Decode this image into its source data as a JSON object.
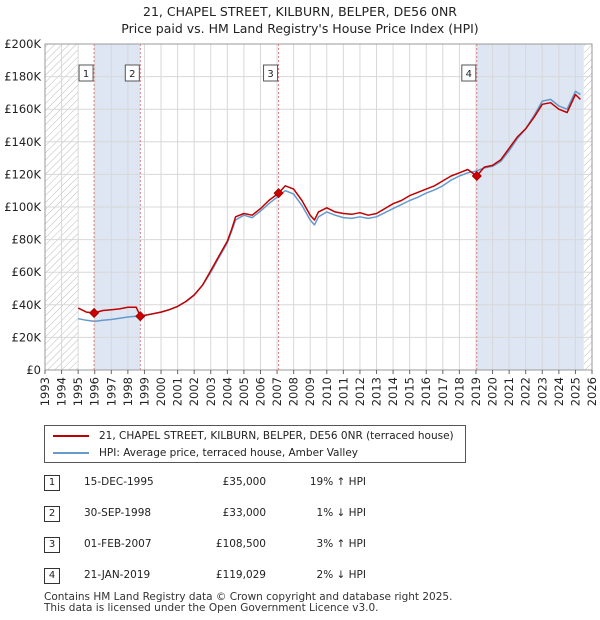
{
  "title_line1": "21, CHAPEL STREET, KILBURN, BELPER, DE56 0NR",
  "title_line2": "Price paid vs. HM Land Registry's House Price Index (HPI)",
  "colors": {
    "property_line": "#c00000",
    "hpi_line": "#6699cc",
    "shade": "#dde6f2",
    "hatch": "#bbbbbb",
    "marker_line": "#e08080"
  },
  "chart_data": {
    "type": "line",
    "title": "21, CHAPEL STREET, KILBURN, BELPER, DE56 0NR - Price paid vs. HM Land Registry's House Price Index (HPI)",
    "xlabel": "",
    "ylabel": "",
    "xlim": [
      1993,
      2026
    ],
    "ylim": [
      0,
      200000
    ],
    "y_ticks": [
      {
        "value": 0,
        "label": "£0"
      },
      {
        "value": 20000,
        "label": "£20K"
      },
      {
        "value": 40000,
        "label": "£40K"
      },
      {
        "value": 60000,
        "label": "£60K"
      },
      {
        "value": 80000,
        "label": "£80K"
      },
      {
        "value": 100000,
        "label": "£100K"
      },
      {
        "value": 120000,
        "label": "£120K"
      },
      {
        "value": 140000,
        "label": "£140K"
      },
      {
        "value": 160000,
        "label": "£160K"
      },
      {
        "value": 180000,
        "label": "£180K"
      },
      {
        "value": 200000,
        "label": "£200K"
      }
    ],
    "x_ticks": [
      "1993",
      "1994",
      "1995",
      "1996",
      "1997",
      "1998",
      "1999",
      "2000",
      "2001",
      "2002",
      "2003",
      "2004",
      "2005",
      "2006",
      "2007",
      "2008",
      "2009",
      "2010",
      "2011",
      "2012",
      "2013",
      "2014",
      "2015",
      "2016",
      "2017",
      "2018",
      "2019",
      "2020",
      "2021",
      "2022",
      "2023",
      "2024",
      "2025",
      "2026"
    ],
    "hatched_before": 1995.0,
    "hatched_after": 2025.5,
    "shaded_ranges": [
      [
        1995.96,
        1998.75
      ],
      [
        2019.05,
        2025.5
      ]
    ],
    "series": [
      {
        "name": "21, CHAPEL STREET, KILBURN, BELPER, DE56 0NR (terraced house)",
        "color": "#c00000",
        "x": [
          1995.0,
          1995.5,
          1995.96,
          1996.5,
          1997.0,
          1997.5,
          1998.0,
          1998.5,
          1998.75,
          1999.0,
          1999.5,
          2000.0,
          2000.5,
          2001.0,
          2001.5,
          2002.0,
          2002.5,
          2003.0,
          2003.5,
          2004.0,
          2004.25,
          2004.5,
          2005.0,
          2005.5,
          2006.0,
          2006.5,
          2007.09,
          2007.5,
          2008.0,
          2008.5,
          2009.0,
          2009.25,
          2009.5,
          2010.0,
          2010.5,
          2011.0,
          2011.5,
          2012.0,
          2012.5,
          2013.0,
          2013.5,
          2014.0,
          2014.5,
          2015.0,
          2015.5,
          2016.0,
          2016.5,
          2017.0,
          2017.5,
          2018.0,
          2018.5,
          2019.05,
          2019.5,
          2020.0,
          2020.5,
          2021.0,
          2021.5,
          2022.0,
          2022.5,
          2023.0,
          2023.5,
          2024.0,
          2024.5,
          2025.0,
          2025.3
        ],
        "values": [
          38000,
          35500,
          35000,
          36500,
          37000,
          37500,
          38500,
          38500,
          33000,
          33500,
          34500,
          35500,
          37000,
          39000,
          42000,
          46000,
          52000,
          61000,
          70000,
          79000,
          86000,
          94000,
          96000,
          95000,
          99000,
          104000,
          108500,
          113000,
          111000,
          104000,
          95000,
          92000,
          97000,
          99500,
          97000,
          96000,
          95500,
          96500,
          95000,
          96000,
          99000,
          102000,
          104000,
          107000,
          109000,
          111000,
          113000,
          116000,
          119000,
          121000,
          123000,
          119029,
          124500,
          125500,
          129000,
          136000,
          143000,
          148000,
          155000,
          163000,
          164000,
          160000,
          158000,
          169000,
          166000
        ]
      },
      {
        "name": "HPI: Average price, terraced house, Amber Valley",
        "color": "#6699cc",
        "x": [
          1995.0,
          1995.5,
          1996.0,
          1996.5,
          1997.0,
          1997.5,
          1998.0,
          1998.5,
          1999.0,
          1999.5,
          2000.0,
          2000.5,
          2001.0,
          2001.5,
          2002.0,
          2002.5,
          2003.0,
          2003.5,
          2004.0,
          2004.25,
          2004.5,
          2005.0,
          2005.5,
          2006.0,
          2006.5,
          2007.0,
          2007.5,
          2008.0,
          2008.5,
          2009.0,
          2009.25,
          2009.5,
          2010.0,
          2010.5,
          2011.0,
          2011.5,
          2012.0,
          2012.5,
          2013.0,
          2013.5,
          2014.0,
          2014.5,
          2015.0,
          2015.5,
          2016.0,
          2016.5,
          2017.0,
          2017.5,
          2018.0,
          2018.5,
          2019.0,
          2019.5,
          2020.0,
          2020.5,
          2021.0,
          2021.5,
          2022.0,
          2022.5,
          2023.0,
          2023.5,
          2024.0,
          2024.5,
          2025.0,
          2025.3
        ],
        "values": [
          31500,
          30500,
          29800,
          30500,
          31000,
          31800,
          32500,
          33000,
          33500,
          34500,
          35500,
          37000,
          39000,
          42000,
          46000,
          52000,
          60000,
          69000,
          78000,
          85000,
          92000,
          95000,
          93500,
          97500,
          102000,
          106000,
          110000,
          108000,
          101000,
          92000,
          89000,
          94000,
          97000,
          95000,
          93500,
          93000,
          94000,
          93000,
          94000,
          96500,
          99000,
          101500,
          104000,
          106000,
          108500,
          110500,
          113000,
          116500,
          119000,
          121000,
          122000,
          124000,
          125000,
          128000,
          134500,
          142000,
          148000,
          156000,
          165000,
          166000,
          162000,
          160000,
          171000,
          169000
        ]
      }
    ],
    "sales": [
      {
        "label": "1",
        "x": 1995.96,
        "value": 35000
      },
      {
        "label": "2",
        "x": 1998.75,
        "value": 33000
      },
      {
        "label": "3",
        "x": 2007.09,
        "value": 108500
      },
      {
        "label": "4",
        "x": 2019.05,
        "value": 119029
      }
    ]
  },
  "legend": {
    "property_label": "21, CHAPEL STREET, KILBURN, BELPER, DE56 0NR (terraced house)",
    "hpi_label": "HPI: Average price, terraced house, Amber Valley"
  },
  "transactions": [
    {
      "num": "1",
      "date": "15-DEC-1995",
      "price": "£35,000",
      "hpi": "19% ↑ HPI"
    },
    {
      "num": "2",
      "date": "30-SEP-1998",
      "price": "£33,000",
      "hpi": "1% ↓ HPI"
    },
    {
      "num": "3",
      "date": "01-FEB-2007",
      "price": "£108,500",
      "hpi": "3% ↑ HPI"
    },
    {
      "num": "4",
      "date": "21-JAN-2019",
      "price": "£119,029",
      "hpi": "2% ↓ HPI"
    }
  ],
  "footer": {
    "line1": "Contains HM Land Registry data © Crown copyright and database right 2025.",
    "line2": "This data is licensed under the Open Government Licence v3.0."
  }
}
